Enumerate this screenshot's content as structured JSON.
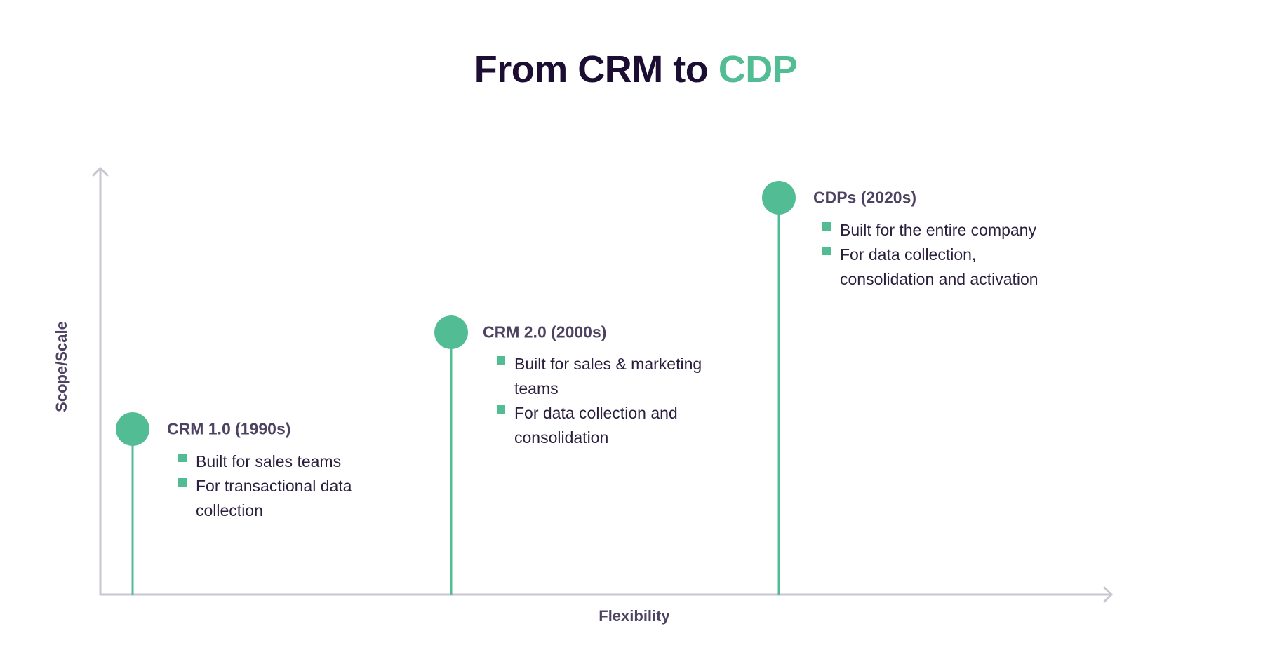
{
  "title": {
    "prefix": "From CRM to ",
    "accent": "CDP"
  },
  "colors": {
    "accent": "#52bd94",
    "title": "#1c0d33",
    "axis": "#c9c6d0"
  },
  "axes": {
    "x_label": "Flexibility",
    "y_label": "Scope/Scale"
  },
  "stages": [
    {
      "label": "CRM 1.0 (1990s)",
      "bullets": [
        [
          "Built for sales teams"
        ],
        [
          "For transactional data",
          "collection"
        ]
      ]
    },
    {
      "label": "CRM 2.0 (2000s)",
      "bullets": [
        [
          "Built for sales & marketing",
          "teams"
        ],
        [
          "For data collection and",
          "consolidation"
        ]
      ]
    },
    {
      "label": "CDPs (2020s)",
      "bullets": [
        [
          "Built for the entire company"
        ],
        [
          "For data collection,",
          "consolidation and activation"
        ]
      ]
    }
  ]
}
